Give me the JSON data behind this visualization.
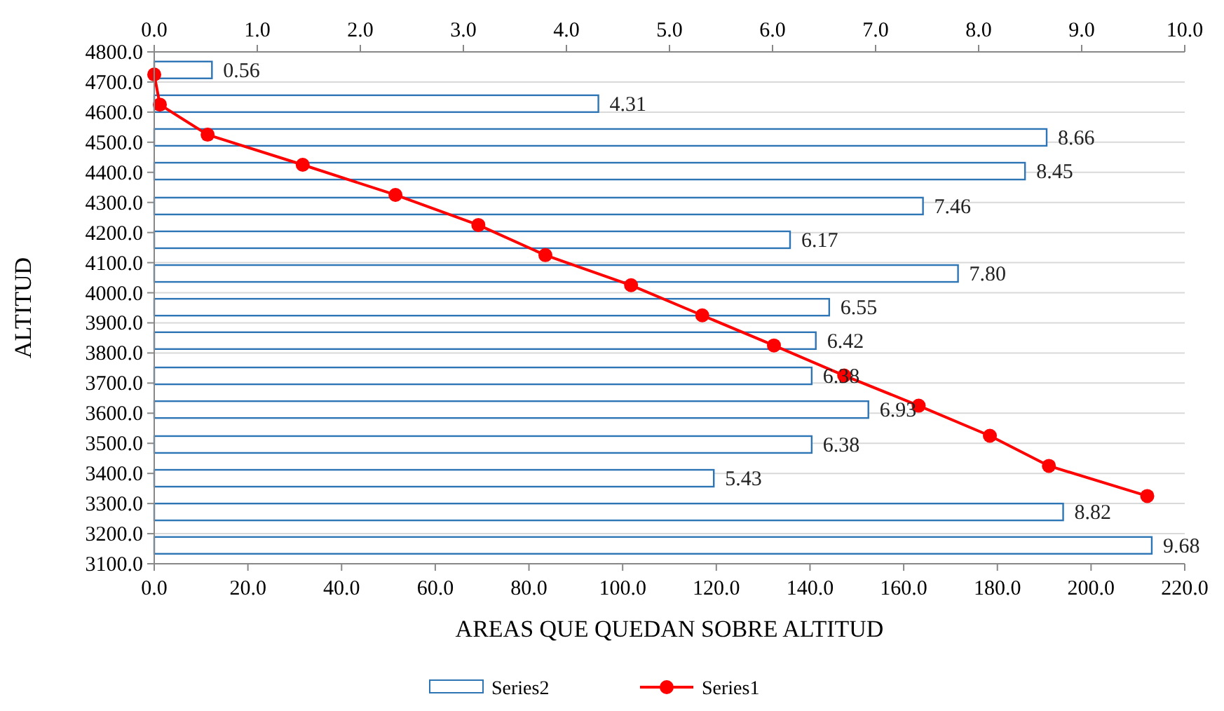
{
  "chart_data": {
    "type": "bar",
    "orientation": "horizontal",
    "xlabel": "AREAS QUE QUEDAN SOBRE ALTITUD",
    "ylabel": "ALTITUD",
    "xlim": [
      0,
      220
    ],
    "xticks": [
      {
        "value": 0,
        "label": "0.0"
      },
      {
        "value": 20,
        "label": "20.0"
      },
      {
        "value": 40,
        "label": "40.0"
      },
      {
        "value": 60,
        "label": "60.0"
      },
      {
        "value": 80,
        "label": "80.0"
      },
      {
        "value": 100,
        "label": "100.0"
      },
      {
        "value": 120,
        "label": "120.0"
      },
      {
        "value": 140,
        "label": "140.0"
      },
      {
        "value": 160,
        "label": "160.0"
      },
      {
        "value": 180,
        "label": "180.0"
      },
      {
        "value": 200,
        "label": "200.0"
      },
      {
        "value": 220,
        "label": "220.0"
      }
    ],
    "x2lim": [
      0,
      10
    ],
    "x2ticks": [
      {
        "value": 0,
        "label": "0.0"
      },
      {
        "value": 1,
        "label": "1.0"
      },
      {
        "value": 2,
        "label": "2.0"
      },
      {
        "value": 3,
        "label": "3.0"
      },
      {
        "value": 4,
        "label": "4.0"
      },
      {
        "value": 5,
        "label": "5.0"
      },
      {
        "value": 6,
        "label": "6.0"
      },
      {
        "value": 7,
        "label": "7.0"
      },
      {
        "value": 8,
        "label": "8.0"
      },
      {
        "value": 9,
        "label": "9.0"
      },
      {
        "value": 10,
        "label": "10.0"
      }
    ],
    "ylim": [
      3100,
      4800
    ],
    "yticks": [
      {
        "value": 3100,
        "label": "3100.0"
      },
      {
        "value": 3200,
        "label": "3200.0"
      },
      {
        "value": 3300,
        "label": "3300.0"
      },
      {
        "value": 3400,
        "label": "3400.0"
      },
      {
        "value": 3500,
        "label": "3500.0"
      },
      {
        "value": 3600,
        "label": "3600.0"
      },
      {
        "value": 3700,
        "label": "3700.0"
      },
      {
        "value": 3800,
        "label": "3800.0"
      },
      {
        "value": 3900,
        "label": "3900.0"
      },
      {
        "value": 4000,
        "label": "4000.0"
      },
      {
        "value": 4100,
        "label": "4100.0"
      },
      {
        "value": 4200,
        "label": "4200.0"
      },
      {
        "value": 4300,
        "label": "4300.0"
      },
      {
        "value": 4400,
        "label": "4400.0"
      },
      {
        "value": 4500,
        "label": "4500.0"
      },
      {
        "value": 4600,
        "label": "4600.0"
      },
      {
        "value": 4700,
        "label": "4700.0"
      },
      {
        "value": 4800,
        "label": "4800.0"
      }
    ],
    "grid": "y",
    "legend": "bottom",
    "marker": "circle",
    "series": [
      {
        "name": "Series2",
        "axis": "x2",
        "color": "#2e75b6",
        "x": [
          4740,
          4628,
          4516,
          4404,
          4288,
          4176,
          4064,
          3952,
          3841,
          3724,
          3612,
          3496,
          3384,
          3272,
          3161
        ],
        "values": [
          0.56,
          4.31,
          8.66,
          8.45,
          7.46,
          6.17,
          7.8,
          6.55,
          6.42,
          6.38,
          6.93,
          6.38,
          5.43,
          8.82,
          9.68
        ],
        "value_labels": [
          "0.56",
          "4.31",
          "8.66",
          "8.45",
          "7.46",
          "6.17",
          "7.80",
          "6.55",
          "6.42",
          "6.38",
          "6.93",
          "6.38",
          "5.43",
          "8.82",
          "9.68"
        ]
      },
      {
        "name": "Series1",
        "type": "line",
        "color": "#ff0000",
        "x": [
          4725,
          4625,
          4525,
          4425,
          4325,
          4225,
          4125,
          4025,
          3925,
          3825,
          3725,
          3625,
          3525,
          3425,
          3325
        ],
        "values": [
          0,
          1.2,
          11.4,
          31.7,
          51.5,
          69.2,
          83.5,
          101.8,
          117,
          132.3,
          147.3,
          163.2,
          178.4,
          191,
          212
        ]
      }
    ]
  }
}
